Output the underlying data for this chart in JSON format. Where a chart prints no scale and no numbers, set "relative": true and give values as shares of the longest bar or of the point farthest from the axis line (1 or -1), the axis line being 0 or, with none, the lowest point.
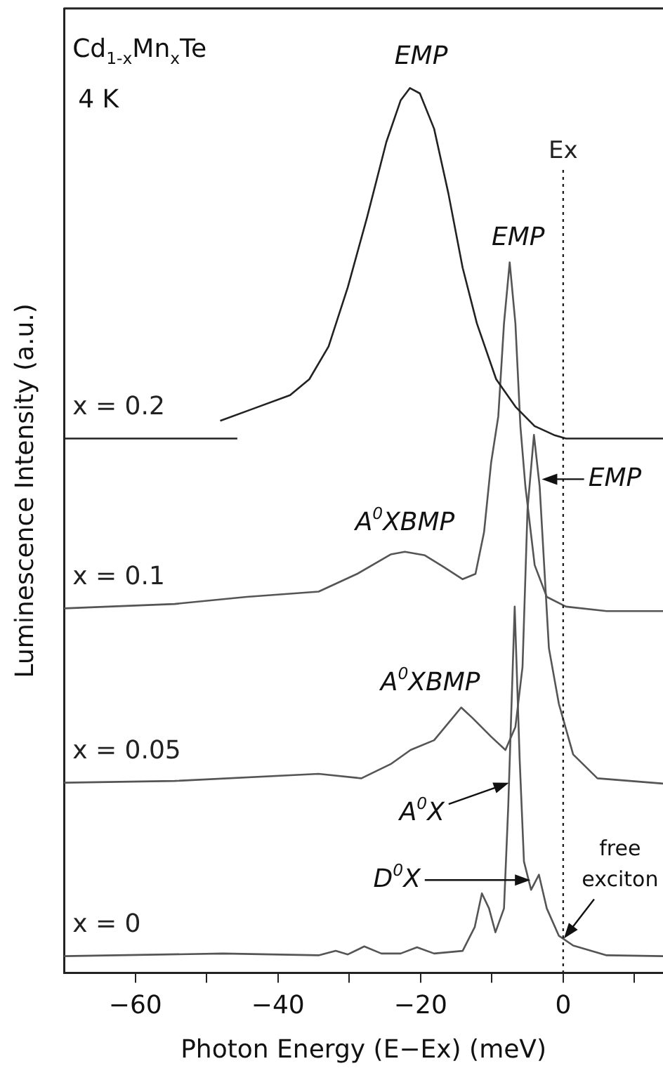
{
  "chart_data": {
    "type": "line",
    "relative": true,
    "xlabel": "Photon Energy (E−Ex) (meV)",
    "ylabel": "Luminescence Intensity (a.u.)",
    "xlim": [
      -70,
      14
    ],
    "xticks": [
      -60,
      {
        "value": -50,
        "label": null
      },
      -40,
      {
        "value": -30,
        "label": null
      },
      -20,
      {
        "value": -10,
        "label": null
      },
      0,
      {
        "value": 10,
        "label": null
      }
    ],
    "legend": false,
    "grid": false,
    "marker": "none",
    "line_style": "solid",
    "series": [
      {
        "name": "x = 0.2",
        "color": "#222222",
        "x": [
          -70,
          -45.7,
          -47,
          -48.1,
          -43.7,
          -38.3,
          -35.6,
          -32.9,
          -30.2,
          -27.5,
          -24.8,
          -22.8,
          -21.5,
          -20.1,
          -18.1,
          -16.1,
          -14.1,
          -12.1,
          -9.4,
          -6.7,
          -4.0,
          -1.3,
          0.4,
          14
        ],
        "values": [
          0.604,
          0.604,
          null,
          0.624,
          0.637,
          0.653,
          0.671,
          0.708,
          0.775,
          0.854,
          0.939,
          0.986,
          1.0,
          0.994,
          0.954,
          0.881,
          0.797,
          0.734,
          0.671,
          0.64,
          0.618,
          0.608,
          0.604,
          0.604
        ]
      },
      {
        "name": "x = 0.1",
        "color": "#555555",
        "x": [
          -70,
          -54.5,
          -44.4,
          -34.3,
          -28.9,
          -24.2,
          -22.2,
          -19.4,
          -16.8,
          -14.1,
          -12.3,
          -11.1,
          -10.1,
          -9.1,
          -8.3,
          -7.5,
          -6.7,
          -6.0,
          -5.3,
          -4.0,
          -2.3,
          0.4,
          6.1,
          14
        ],
        "values": [
          0.412,
          0.417,
          0.425,
          0.431,
          0.451,
          0.473,
          0.476,
          0.472,
          0.459,
          0.445,
          0.451,
          0.498,
          0.577,
          0.629,
          0.734,
          0.803,
          0.734,
          0.618,
          0.55,
          0.461,
          0.425,
          0.414,
          0.409,
          0.409
        ]
      },
      {
        "name": "x = 0.05",
        "color": "#555555",
        "x": [
          -70,
          -54.5,
          -34.3,
          -28.3,
          -24.2,
          -21.4,
          -18.1,
          -14.3,
          -12.7,
          -10.1,
          -8.1,
          -6.7,
          -5.7,
          -5.0,
          -4.1,
          -3.3,
          -2.0,
          -0.6,
          1.4,
          4.8,
          14
        ],
        "values": [
          0.215,
          0.217,
          0.225,
          0.22,
          0.236,
          0.252,
          0.263,
          0.3,
          0.288,
          0.267,
          0.252,
          0.278,
          0.346,
          0.524,
          0.608,
          0.55,
          0.367,
          0.304,
          0.247,
          0.22,
          0.214
        ]
      },
      {
        "name": "x = 0",
        "color": "#555555",
        "x": [
          -70,
          -47.7,
          -34.3,
          -31.9,
          -30.2,
          -27.9,
          -25.5,
          -22.8,
          -20.5,
          -18.1,
          -14.1,
          -12.4,
          -11.4,
          -10.4,
          -9.5,
          -8.3,
          -7.7,
          -6.8,
          -6.1,
          -5.5,
          -4.5,
          -3.4,
          -2.3,
          -0.6,
          1.4,
          6.1,
          14
        ],
        "values": [
          0.019,
          0.022,
          0.02,
          0.025,
          0.021,
          0.03,
          0.022,
          0.022,
          0.029,
          0.022,
          0.025,
          0.052,
          0.09,
          0.073,
          0.046,
          0.073,
          0.189,
          0.414,
          0.241,
          0.126,
          0.094,
          0.111,
          0.073,
          0.042,
          0.031,
          0.02,
          0.019
        ]
      }
    ],
    "ref_lines": [
      {
        "axis": "x",
        "value": 0,
        "label": "Ex",
        "color": "#222222",
        "line_style": "dotted"
      }
    ],
    "annotations": [
      "Cd$_{1-x}$Mn$_{x}$Te",
      "4 K",
      {
        "text": "EMP",
        "x": -21.5,
        "y": 1.0
      },
      {
        "text": "EMP",
        "x": -7.5,
        "y": 0.803
      },
      {
        "text": "EMP",
        "x": -3.0,
        "y": 0.558
      },
      {
        "text": "A$^{0}$XBMP",
        "x": -22.2,
        "y": 0.476
      },
      {
        "text": "A$^{0}$XBMP",
        "x": -14.3,
        "y": 0.3
      },
      {
        "text": "A$^{0}$X",
        "x": -7.6,
        "y": 0.215
      },
      {
        "text": "D$^{0}$X",
        "x": -4.6,
        "y": 0.105
      },
      {
        "text": "free exciton",
        "x": 0.1,
        "y": 0.039
      }
    ]
  }
}
